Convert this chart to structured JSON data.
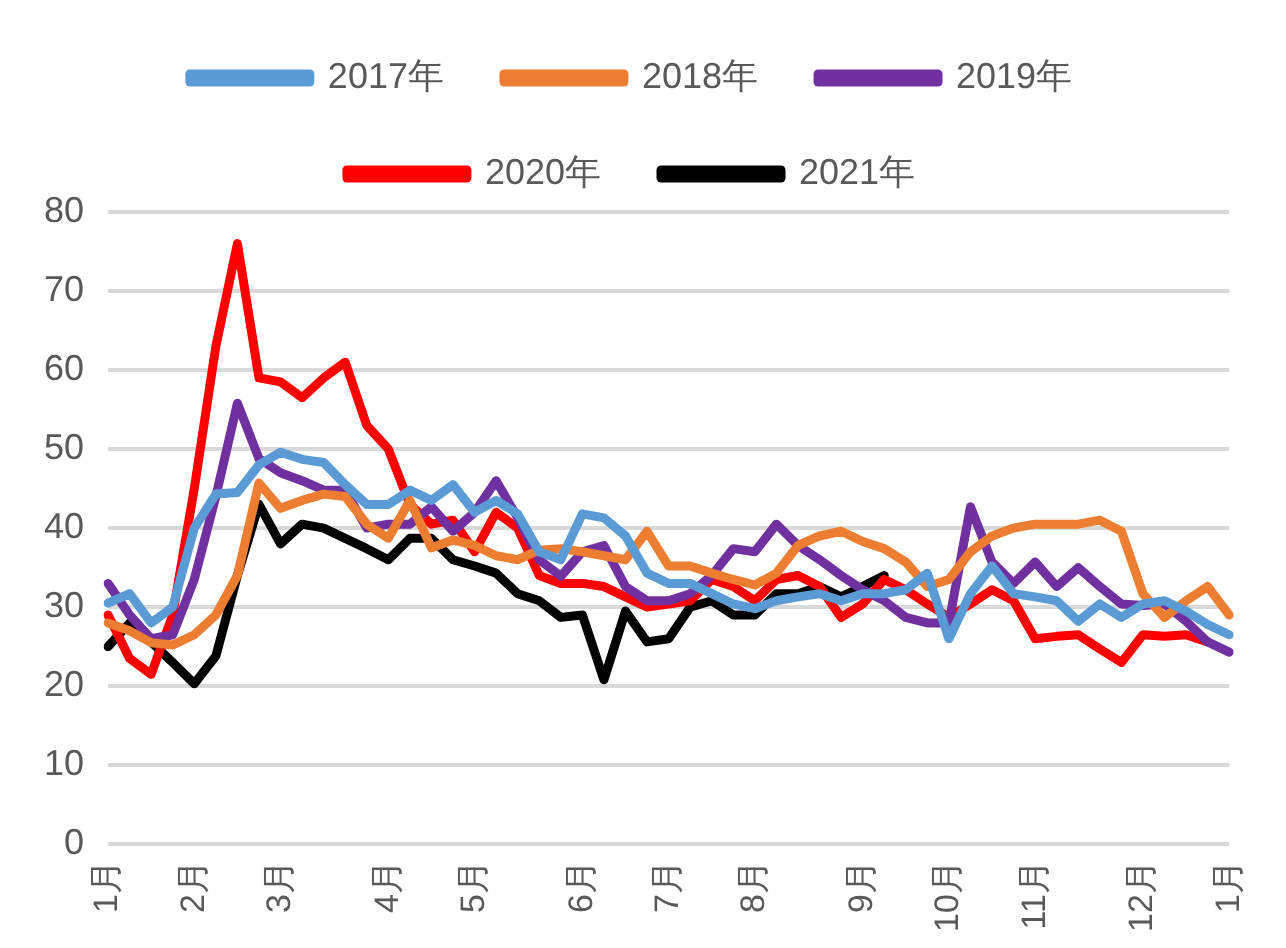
{
  "chart_data": {
    "type": "line",
    "categories": [
      "1月",
      null,
      null,
      null,
      "2月",
      null,
      null,
      null,
      "3月",
      null,
      null,
      null,
      null,
      "4月",
      null,
      null,
      null,
      "5月",
      null,
      null,
      null,
      null,
      "6月",
      null,
      null,
      null,
      "7月",
      null,
      null,
      null,
      "8月",
      null,
      null,
      null,
      null,
      "9月",
      null,
      null,
      null,
      "10月",
      null,
      null,
      null,
      "11月",
      null,
      null,
      null,
      null,
      "12月",
      null,
      null,
      null,
      "1月"
    ],
    "series": [
      {
        "name": "2017年",
        "color": "#5b9bd5",
        "values": [
          30.5,
          31.7,
          28,
          30,
          40,
          44.3,
          44.5,
          48,
          49.6,
          48.7,
          48.3,
          45.5,
          43,
          43,
          44.8,
          43.5,
          45.5,
          42,
          43.5,
          41.8,
          37,
          36,
          41.8,
          41.3,
          39,
          34.3,
          33,
          33,
          31.7,
          30.4,
          29.8,
          30.8,
          31.3,
          31.7,
          30.8,
          31.7,
          31.7,
          32.2,
          34.3,
          26,
          31.7,
          35.2,
          31.7,
          31.3,
          30.8,
          28.2,
          30.4,
          28.7,
          30.4,
          30.8,
          29.5,
          27.8,
          26.5
        ]
      },
      {
        "name": "2018年",
        "color": "#ed7d31",
        "values": [
          28,
          27,
          25.5,
          25.2,
          26.5,
          29,
          34,
          45.7,
          42.5,
          43.5,
          44.3,
          44,
          40.5,
          38.7,
          43.5,
          37.5,
          38.5,
          37.8,
          36.5,
          36,
          37.2,
          37.4,
          37,
          36.5,
          36,
          39.6,
          35.2,
          35.2,
          34.3,
          33.5,
          32.8,
          34.3,
          37.8,
          39,
          39.6,
          38.3,
          37.4,
          35.7,
          32.6,
          33.5,
          37,
          39,
          40,
          40.5,
          40.5,
          40.5,
          41,
          39.6,
          31.7,
          28.7,
          30.8,
          32.6,
          29
        ]
      },
      {
        "name": "2019年",
        "color": "#7030a0",
        "values": [
          33,
          29,
          26,
          26.5,
          33.5,
          44,
          55.8,
          48.8,
          47,
          46,
          44.8,
          44.8,
          40,
          40.5,
          40.5,
          42.7,
          39.6,
          42,
          46,
          41.3,
          36,
          33.9,
          37,
          37.8,
          32.6,
          30.8,
          30.8,
          31.7,
          34,
          37.4,
          37,
          40.5,
          37.8,
          36,
          34,
          32.2,
          30.8,
          28.7,
          28,
          28,
          42.7,
          35.7,
          33,
          35.7,
          32.6,
          35,
          32.6,
          30.4,
          30.2,
          30.4,
          28.2,
          25.6,
          24.3
        ]
      },
      {
        "name": "2020年",
        "color": "#ff0000",
        "values": [
          29,
          23.5,
          21.5,
          29,
          45,
          63,
          76,
          59,
          58.5,
          56.5,
          59,
          61,
          53,
          50,
          43,
          40.5,
          41,
          37,
          42,
          40,
          34,
          33,
          33,
          32.6,
          31.3,
          30,
          30.4,
          30.8,
          33.5,
          32.6,
          30.8,
          33.5,
          34,
          32.6,
          28.7,
          30.4,
          33.5,
          32.2,
          30.4,
          28.7,
          30.4,
          32.2,
          30.8,
          26,
          26.3,
          26.5,
          24.7,
          23,
          26.5,
          26.3,
          26.5,
          25.6,
          null
        ]
      },
      {
        "name": "2021年",
        "color": "#000000",
        "values": [
          25,
          28,
          25.6,
          23,
          20.3,
          23.8,
          34,
          43,
          38,
          40.5,
          40,
          38.7,
          37.4,
          36,
          38.7,
          38.7,
          36,
          35.2,
          34.3,
          31.7,
          30.8,
          28.7,
          29,
          20.8,
          29.5,
          25.6,
          26,
          30,
          30.8,
          29,
          29,
          31.7,
          31.7,
          32.6,
          31.3,
          32.6,
          34,
          null,
          null,
          null,
          null,
          null,
          null,
          null,
          null,
          null,
          null,
          null,
          null,
          null,
          null,
          null,
          null
        ]
      }
    ],
    "ylim": [
      0,
      80
    ],
    "yticks": [
      0,
      10,
      20,
      30,
      40,
      50,
      60,
      70,
      80
    ],
    "grid": "y",
    "legend": "top",
    "marker": "none",
    "line_style": "solid"
  }
}
